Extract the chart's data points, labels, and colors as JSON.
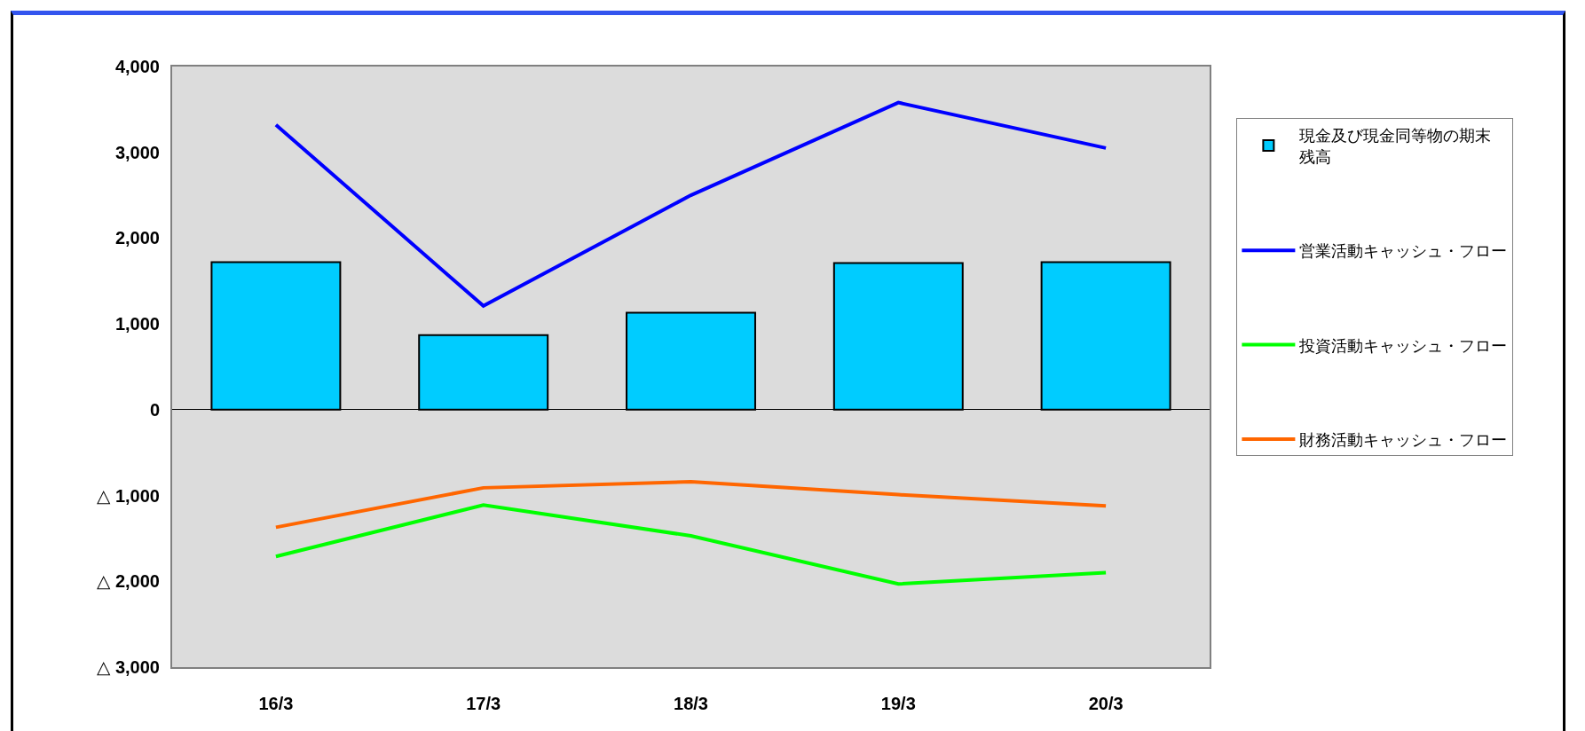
{
  "chart_data": {
    "type": "bar",
    "categories": [
      "16/3",
      "17/3",
      "18/3",
      "19/3",
      "20/3"
    ],
    "series": [
      {
        "name": "現金及び現金同等物の期末残高",
        "color": "#00ccff",
        "values": [
          1720,
          870,
          1130,
          1710,
          1720
        ]
      },
      {
        "name": "営業活動キャッシュ・フロー",
        "type": "line",
        "color": "#0000ff",
        "values": [
          3320,
          1210,
          2500,
          3580,
          3050
        ]
      },
      {
        "name": "投資活動キャッシュ・フロー",
        "type": "line",
        "color": "#00ff00",
        "values": [
          -1710,
          -1110,
          -1470,
          -2030,
          -1900
        ]
      },
      {
        "name": "財務活動キャッシュ・フロー",
        "type": "line",
        "color": "#ff6600",
        "values": [
          -1370,
          -910,
          -840,
          -990,
          -1120
        ]
      }
    ],
    "ylim": [
      -3000,
      4000
    ],
    "yticks": [
      {
        "value": -3000,
        "label": "△ 3,000"
      },
      {
        "value": -2000,
        "label": "△ 2,000"
      },
      {
        "value": -1000,
        "label": "△ 1,000"
      },
      0,
      {
        "value": 1000,
        "label": "1,000"
      },
      {
        "value": 2000,
        "label": "2,000"
      },
      {
        "value": 3000,
        "label": "3,000"
      },
      {
        "value": 4000,
        "label": "4,000"
      }
    ],
    "legend": "right"
  }
}
